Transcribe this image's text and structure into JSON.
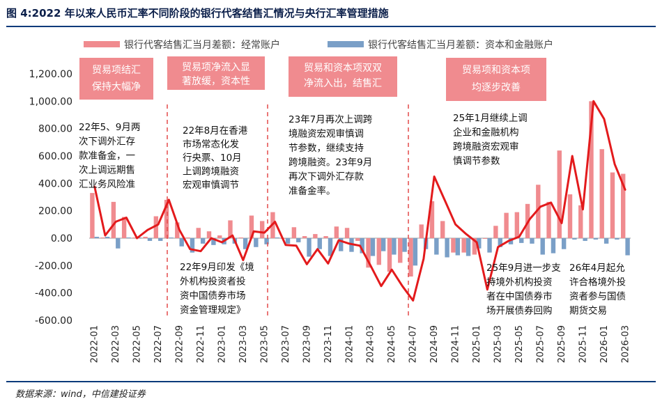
{
  "title": "图 4:2022 年以来人民币汇率不同阶段的银行代客结售汇情况与央行汇率管理措施",
  "source": "数据来源：wind，中信建投证券",
  "chart_data": {
    "type": "bar",
    "title": "",
    "xlabel": "",
    "ylabel": "",
    "ylim": [
      -600,
      1200
    ],
    "yticks": [
      "1,200.00",
      "1,000.00",
      "800.00",
      "600.00",
      "400.00",
      "200.00",
      "0.00",
      "-200.00",
      "-400.00",
      "-600.00"
    ],
    "ytick_values": [
      1200,
      1000,
      800,
      600,
      400,
      200,
      0,
      -200,
      -400,
      -600
    ],
    "x_ticks": [
      "2022-01",
      "2022-03",
      "2022-05",
      "2022-07",
      "2022-09",
      "2022-11",
      "2023-01",
      "2023-03",
      "2023-05",
      "2023-07",
      "2023-09",
      "2023-11",
      "2024-01",
      "2024-03",
      "2024-05",
      "2024-07",
      "2024-09",
      "2024-11",
      "2025-01",
      "2025-03",
      "2025-05",
      "2025-07",
      "2025-09",
      "2025-11",
      "2026-01",
      "2026-03"
    ],
    "categories": [
      "2022-01",
      "2022-02",
      "2022-03",
      "2022-04",
      "2022-05",
      "2022-06",
      "2022-07",
      "2022-08",
      "2022-09",
      "2022-10",
      "2022-11",
      "2022-12",
      "2023-01",
      "2023-02",
      "2023-03",
      "2023-04",
      "2023-05",
      "2023-06",
      "2023-07",
      "2023-08",
      "2023-09",
      "2023-10",
      "2023-11",
      "2023-12",
      "2024-01",
      "2024-02",
      "2024-03",
      "2024-04",
      "2024-05",
      "2024-06",
      "2024-07",
      "2024-08",
      "2024-09",
      "2024-10",
      "2024-11",
      "2024-12",
      "2025-01",
      "2025-02",
      "2025-03",
      "2025-04",
      "2025-05",
      "2025-06",
      "2025-07",
      "2025-08",
      "2025-09",
      "2025-10",
      "2025-11",
      "2025-12",
      "2026-01",
      "2026-02",
      "2026-03"
    ],
    "series": [
      {
        "name": "银行代客结售汇当月差额：经常账户",
        "kind": "bar",
        "color": "#f08b8f",
        "values": [
          330,
          5,
          265,
          155,
          5,
          10,
          160,
          280,
          115,
          5,
          75,
          50,
          20,
          130,
          5,
          165,
          125,
          190,
          -5,
          80,
          15,
          30,
          15,
          85,
          75,
          -20,
          -215,
          -195,
          -245,
          -180,
          -280,
          100,
          270,
          125,
          -105,
          -105,
          -120,
          -5,
          90,
          185,
          190,
          250,
          390,
          265,
          640,
          320,
          240,
          1000,
          650,
          480,
          470
        ]
      },
      {
        "name": "银行代客结售汇当月差额：资本和金融账户",
        "kind": "bar",
        "color": "#7a9fc7",
        "values": [
          10,
          10,
          -75,
          5,
          5,
          -20,
          -20,
          5,
          -60,
          -105,
          -40,
          -50,
          -45,
          -40,
          -80,
          -65,
          -45,
          5,
          -40,
          -30,
          -135,
          -80,
          -130,
          -95,
          -100,
          -110,
          -130,
          -95,
          -120,
          -100,
          -200,
          -80,
          -120,
          -140,
          -125,
          -130,
          -75,
          -105,
          -65,
          -45,
          -35,
          -40,
          -120,
          -110,
          -80,
          -10,
          -20,
          -10,
          -40,
          -10,
          -125
        ]
      },
      {
        "name": "",
        "kind": "line",
        "color": "#e31a1c",
        "values": [
          380,
          20,
          120,
          150,
          0,
          60,
          100,
          280,
          60,
          -80,
          -95,
          0,
          -30,
          20,
          -160,
          50,
          40,
          120,
          -50,
          -55,
          -190,
          -80,
          -185,
          -15,
          -40,
          -55,
          -200,
          -350,
          -230,
          -350,
          -455,
          -150,
          450,
          275,
          100,
          30,
          -30,
          -375,
          -65,
          -20,
          10,
          140,
          230,
          260,
          110,
          600,
          210,
          1000,
          870,
          540,
          350
        ]
      }
    ]
  },
  "legend": {
    "bar1": "银行代客结售汇当月差额：经常账户",
    "bar2": "银行代客结售汇当月差额：资本和金融账户"
  },
  "boxes": [
    {
      "lines": [
        "贸易项结汇",
        "保持大幅净"
      ]
    },
    {
      "lines": [
        "贸易项净流入显",
        "著放缓，资本性"
      ]
    },
    {
      "lines": [
        "贸易和资本项双双",
        "净流入出，结售汇"
      ]
    },
    {
      "lines": [
        "贸易项和资本项",
        "均逐步改善"
      ]
    }
  ],
  "annotations": [
    {
      "lines": [
        "22年5、9月两",
        "次下调外汇存",
        "款准备金，一",
        "次上调远期售",
        "汇业务风险准"
      ]
    },
    {
      "lines": [
        "22年8月在香港",
        "市场常态化发",
        "行央票、10月",
        "上调跨境融资",
        "宏观审慎调节"
      ]
    },
    {
      "lines": [
        "23年7月再次上调跨",
        "境融资宏观审慎调",
        "节参数，继续支持",
        "跨境融资。23年9月",
        "再次下调外汇存款",
        "准备金率。"
      ]
    },
    {
      "lines": [
        "25年1月继续上调",
        "企业和金融机构",
        "跨境融资宏观审",
        "慎调节参数"
      ]
    },
    {
      "lines": [
        "22年9月印发《境",
        "外机构投资者投",
        "资中国债券市场",
        "资金管理规定》"
      ]
    },
    {
      "lines": [
        "25年9月进一步支",
        "持境外机构投资",
        "者在中国债券市",
        "场开展债券回购"
      ]
    },
    {
      "lines": [
        "26年4月起允",
        "许合格境外投",
        "资者参与国债",
        "期货交易"
      ]
    }
  ]
}
